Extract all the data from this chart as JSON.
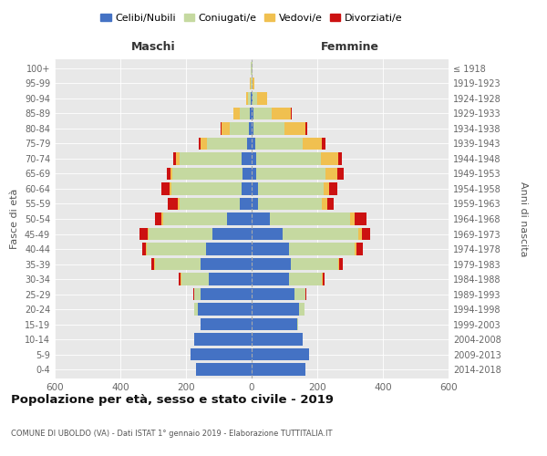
{
  "age_groups": [
    "0-4",
    "5-9",
    "10-14",
    "15-19",
    "20-24",
    "25-29",
    "30-34",
    "35-39",
    "40-44",
    "45-49",
    "50-54",
    "55-59",
    "60-64",
    "65-69",
    "70-74",
    "75-79",
    "80-84",
    "85-89",
    "90-94",
    "95-99",
    "100+"
  ],
  "birth_years": [
    "2014-2018",
    "2009-2013",
    "2004-2008",
    "1999-2003",
    "1994-1998",
    "1989-1993",
    "1984-1988",
    "1979-1983",
    "1974-1978",
    "1969-1973",
    "1964-1968",
    "1959-1963",
    "1954-1958",
    "1949-1953",
    "1944-1948",
    "1939-1943",
    "1934-1938",
    "1929-1933",
    "1924-1928",
    "1919-1923",
    "≤ 1918"
  ],
  "maschi": {
    "celibi": [
      170,
      185,
      175,
      155,
      165,
      155,
      130,
      155,
      140,
      120,
      75,
      35,
      30,
      28,
      30,
      15,
      8,
      5,
      2,
      1,
      1
    ],
    "coniugati": [
      0,
      0,
      0,
      1,
      10,
      20,
      85,
      140,
      180,
      195,
      195,
      185,
      215,
      215,
      190,
      120,
      60,
      30,
      8,
      2,
      1
    ],
    "vedovi": [
      0,
      0,
      0,
      0,
      0,
      0,
      1,
      1,
      2,
      3,
      5,
      5,
      5,
      5,
      10,
      20,
      25,
      20,
      8,
      2,
      0
    ],
    "divorziati": [
      0,
      0,
      0,
      0,
      0,
      2,
      5,
      10,
      12,
      25,
      20,
      30,
      25,
      10,
      10,
      5,
      2,
      0,
      0,
      0,
      0
    ]
  },
  "femmine": {
    "nubili": [
      165,
      175,
      155,
      140,
      145,
      130,
      115,
      120,
      115,
      95,
      55,
      20,
      20,
      15,
      15,
      10,
      5,
      5,
      3,
      1,
      1
    ],
    "coniugate": [
      0,
      0,
      0,
      2,
      15,
      35,
      100,
      145,
      200,
      230,
      245,
      195,
      200,
      210,
      195,
      145,
      95,
      55,
      15,
      3,
      1
    ],
    "vedove": [
      0,
      0,
      0,
      0,
      0,
      0,
      1,
      2,
      5,
      10,
      15,
      15,
      15,
      35,
      55,
      60,
      65,
      60,
      30,
      5,
      1
    ],
    "divorziate": [
      0,
      0,
      0,
      0,
      1,
      2,
      5,
      10,
      20,
      25,
      35,
      20,
      25,
      20,
      10,
      10,
      5,
      1,
      0,
      0,
      0
    ]
  },
  "colors": {
    "celibi": "#4472c4",
    "coniugati": "#c5d9a0",
    "vedovi": "#f0c050",
    "divorziati": "#cc1111"
  },
  "xlim": 600,
  "title": "Popolazione per età, sesso e stato civile - 2019",
  "subtitle": "COMUNE DI UBOLDO (VA) - Dati ISTAT 1° gennaio 2019 - Elaborazione TUTTITALIA.IT",
  "ylabel_left": "Fasce di età",
  "ylabel_right": "Anni di nascita",
  "xlabel_left": "Maschi",
  "xlabel_right": "Femmine"
}
